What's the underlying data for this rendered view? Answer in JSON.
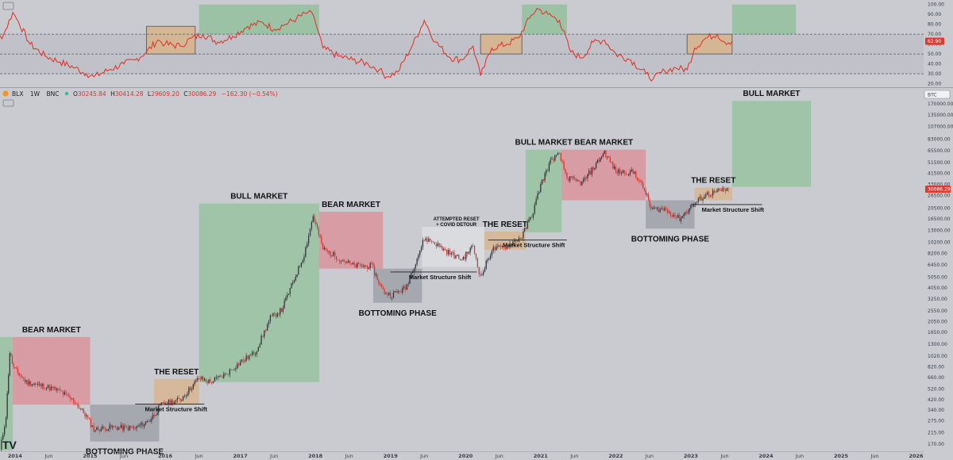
{
  "legend": {
    "symbol": "BLX",
    "interval": "1W",
    "exchange": "BNC",
    "open_label": "O",
    "open": "30245.84",
    "high_label": "H",
    "high": "30414.28",
    "low_label": "L",
    "low": "29609.20",
    "close_label": "C",
    "close": "30086.29",
    "change": "−162.30 (−0.54%)"
  },
  "currency_badge": "BTC",
  "watermark": "TV",
  "colors": {
    "background": "#c9cbd1",
    "bull_zone": "#93c19c",
    "bear_zone": "#dc8e98",
    "bottom_zone": "#9c9ea5",
    "reset_zone": "#d8b48b",
    "attempt_zone": "#dfe1e6",
    "rsi_line": "#e3372e",
    "candle_up": "#2f3036",
    "candle_down": "#d8342f",
    "price_badge": "#e3372e",
    "grid_dashed": "#555a66"
  },
  "chart_data": [
    {
      "type": "line",
      "panel": "rsi",
      "y_ticks": [
        100,
        90,
        80,
        70,
        60,
        50,
        40,
        30,
        20
      ],
      "y_tick_labels": [
        "100.00",
        "90.00",
        "80.00",
        "70.00",
        "60.00",
        "50.00",
        "40.00",
        "30.00",
        "20.00"
      ],
      "ylim": [
        18,
        103
      ],
      "current_value": 62.9,
      "current_label": "62.90",
      "reference_lines": [
        70,
        50,
        30
      ],
      "zones": [
        {
          "kind": "reset",
          "x0": 2015.75,
          "x1": 2016.4,
          "y0": 50,
          "y1": 78
        },
        {
          "kind": "bull",
          "x0": 2016.45,
          "x1": 2018.05,
          "y0": 70,
          "y1": 100
        },
        {
          "kind": "reset",
          "x0": 2020.2,
          "x1": 2020.75,
          "y0": 50,
          "y1": 70
        },
        {
          "kind": "bull",
          "x0": 2020.75,
          "x1": 2021.35,
          "y0": 70,
          "y1": 100
        },
        {
          "kind": "reset",
          "x0": 2022.95,
          "x1": 2023.55,
          "y0": 50,
          "y1": 70
        },
        {
          "kind": "bull",
          "x0": 2023.55,
          "x1": 2024.4,
          "y0": 70,
          "y1": 100
        }
      ],
      "points": [
        [
          2013.5,
          48
        ],
        [
          2013.85,
          70
        ],
        [
          2013.97,
          92
        ],
        [
          2014.05,
          82
        ],
        [
          2014.2,
          60
        ],
        [
          2014.4,
          48
        ],
        [
          2014.6,
          42
        ],
        [
          2014.8,
          36
        ],
        [
          2014.95,
          30
        ],
        [
          2015.05,
          27
        ],
        [
          2015.25,
          34
        ],
        [
          2015.45,
          40
        ],
        [
          2015.6,
          44
        ],
        [
          2015.75,
          52
        ],
        [
          2015.9,
          64
        ],
        [
          2016.0,
          60
        ],
        [
          2016.2,
          58
        ],
        [
          2016.35,
          66
        ],
        [
          2016.5,
          70
        ],
        [
          2016.7,
          62
        ],
        [
          2016.9,
          68
        ],
        [
          2017.1,
          78
        ],
        [
          2017.3,
          82
        ],
        [
          2017.45,
          75
        ],
        [
          2017.6,
          80
        ],
        [
          2017.75,
          86
        ],
        [
          2017.9,
          92
        ],
        [
          2017.98,
          88
        ],
        [
          2018.1,
          56
        ],
        [
          2018.3,
          48
        ],
        [
          2018.5,
          44
        ],
        [
          2018.7,
          40
        ],
        [
          2018.85,
          34
        ],
        [
          2018.95,
          27
        ],
        [
          2019.1,
          32
        ],
        [
          2019.3,
          60
        ],
        [
          2019.45,
          84
        ],
        [
          2019.6,
          62
        ],
        [
          2019.8,
          46
        ],
        [
          2019.95,
          44
        ],
        [
          2020.1,
          58
        ],
        [
          2020.2,
          28
        ],
        [
          2020.35,
          56
        ],
        [
          2020.55,
          60
        ],
        [
          2020.7,
          66
        ],
        [
          2020.85,
          86
        ],
        [
          2020.95,
          96
        ],
        [
          2021.1,
          90
        ],
        [
          2021.25,
          84
        ],
        [
          2021.4,
          52
        ],
        [
          2021.55,
          46
        ],
        [
          2021.7,
          62
        ],
        [
          2021.85,
          64
        ],
        [
          2022.0,
          50
        ],
        [
          2022.2,
          44
        ],
        [
          2022.4,
          30
        ],
        [
          2022.5,
          25
        ],
        [
          2022.65,
          33
        ],
        [
          2022.8,
          36
        ],
        [
          2022.95,
          34
        ],
        [
          2023.05,
          56
        ],
        [
          2023.2,
          66
        ],
        [
          2023.35,
          70
        ],
        [
          2023.45,
          62
        ],
        [
          2023.55,
          62.9
        ]
      ]
    },
    {
      "type": "candlestick",
      "panel": "price",
      "scale": "log",
      "y_ticks": [
        170000,
        135000,
        107000,
        83000,
        65500,
        51500,
        41500,
        33000,
        26500,
        20500,
        16500,
        13000,
        10200,
        8200,
        6450,
        5050,
        4050,
        3250,
        2550,
        2050,
        1650,
        1300,
        1020,
        820,
        660,
        520,
        420,
        340,
        275,
        215,
        170
      ],
      "y_tick_labels": [
        "170000.00",
        "135000.00",
        "107000.00",
        "83000.00",
        "65500.00",
        "51500.00",
        "41500.00",
        "33000.00",
        "26500.00",
        "20500.00",
        "16500.00",
        "13000.00",
        "10200.00",
        "8200.00",
        "6450.00",
        "5050.00",
        "4050.00",
        "3250.00",
        "2550.00",
        "2050.00",
        "1650.00",
        "1300.00",
        "1020.00",
        "820.00",
        "660.00",
        "520.00",
        "420.00",
        "340.00",
        "275.00",
        "215.00",
        "170.00"
      ],
      "ylim": [
        150,
        230000
      ],
      "x_range": [
        2013.8,
        2026.1
      ],
      "x_ticks": [
        2014,
        2014.45,
        2015,
        2015.45,
        2016,
        2016.45,
        2017,
        2017.45,
        2018,
        2018.45,
        2019,
        2019.45,
        2020,
        2020.45,
        2021,
        2021.45,
        2022,
        2022.45,
        2023,
        2023.45,
        2024,
        2024.45,
        2025,
        2025.45,
        2026
      ],
      "x_tick_labels": [
        "2014",
        "Jun",
        "2015",
        "Jun",
        "2016",
        "Jun",
        "2017",
        "Jun",
        "2018",
        "Jun",
        "2019",
        "Jun",
        "2020",
        "Jun",
        "2021",
        "Jun",
        "2022",
        "Jun",
        "2023",
        "Jun",
        "2024",
        "Jun",
        "2025",
        "Jun",
        "2026"
      ],
      "current_value": 30086.29,
      "current_label": "30086.29",
      "key_points": [
        [
          2013.8,
          150
        ],
        [
          2013.88,
          300
        ],
        [
          2013.93,
          1100
        ],
        [
          2013.98,
          800
        ],
        [
          2014.15,
          600
        ],
        [
          2014.4,
          550
        ],
        [
          2014.6,
          500
        ],
        [
          2014.8,
          400
        ],
        [
          2014.95,
          300
        ],
        [
          2015.05,
          230
        ],
        [
          2015.3,
          240
        ],
        [
          2015.6,
          235
        ],
        [
          2015.8,
          280
        ],
        [
          2015.95,
          380
        ],
        [
          2016.2,
          420
        ],
        [
          2016.45,
          650
        ],
        [
          2016.6,
          600
        ],
        [
          2016.8,
          700
        ],
        [
          2017.0,
          900
        ],
        [
          2017.2,
          1100
        ],
        [
          2017.4,
          2200
        ],
        [
          2017.55,
          2600
        ],
        [
          2017.7,
          4500
        ],
        [
          2017.85,
          8000
        ],
        [
          2017.97,
          17500
        ],
        [
          2018.1,
          9000
        ],
        [
          2018.3,
          7500
        ],
        [
          2018.5,
          6400
        ],
        [
          2018.75,
          6300
        ],
        [
          2018.9,
          3800
        ],
        [
          2019.0,
          3500
        ],
        [
          2019.2,
          4000
        ],
        [
          2019.45,
          11000
        ],
        [
          2019.55,
          10500
        ],
        [
          2019.75,
          8500
        ],
        [
          2019.95,
          7200
        ],
        [
          2020.1,
          9500
        ],
        [
          2020.2,
          5000
        ],
        [
          2020.35,
          8800
        ],
        [
          2020.55,
          9500
        ],
        [
          2020.75,
          11500
        ],
        [
          2020.9,
          19000
        ],
        [
          2021.0,
          33000
        ],
        [
          2021.15,
          56000
        ],
        [
          2021.25,
          60000
        ],
        [
          2021.35,
          38000
        ],
        [
          2021.55,
          34000
        ],
        [
          2021.72,
          48000
        ],
        [
          2021.85,
          64000
        ],
        [
          2022.0,
          43000
        ],
        [
          2022.25,
          42000
        ],
        [
          2022.4,
          28000
        ],
        [
          2022.47,
          20000
        ],
        [
          2022.65,
          20000
        ],
        [
          2022.85,
          16500
        ],
        [
          2023.0,
          21000
        ],
        [
          2023.2,
          27000
        ],
        [
          2023.35,
          28500
        ],
        [
          2023.5,
          30086.29
        ]
      ],
      "zones": [
        {
          "kind": "bull",
          "x0": 2013.8,
          "x1": 2013.97,
          "y0": 150,
          "y1": 1500,
          "label": ""
        },
        {
          "kind": "bear",
          "x0": 2013.97,
          "x1": 2015.0,
          "y0": 380,
          "y1": 1500,
          "label": "BEAR MARKET"
        },
        {
          "kind": "bottom",
          "x0": 2015.0,
          "x1": 2015.92,
          "y0": 180,
          "y1": 380,
          "label": "BOTTOMING PHASE"
        },
        {
          "kind": "reset",
          "x0": 2015.85,
          "x1": 2016.45,
          "y0": 380,
          "y1": 640,
          "label": "THE RESET"
        },
        {
          "kind": "bull",
          "x0": 2016.45,
          "x1": 2018.05,
          "y0": 600,
          "y1": 22500,
          "label": "BULL MARKET"
        },
        {
          "kind": "bear",
          "x0": 2018.05,
          "x1": 2018.9,
          "y0": 6000,
          "y1": 19000,
          "label": "BEAR MARKET"
        },
        {
          "kind": "bottom",
          "x0": 2018.77,
          "x1": 2019.42,
          "y0": 3000,
          "y1": 6000,
          "label": "BOTTOMING PHASE"
        },
        {
          "kind": "attempt",
          "x0": 2019.42,
          "x1": 2020.25,
          "y0": 6200,
          "y1": 14000,
          "label": "ATTEMPTED RESET"
        },
        {
          "kind": "reset",
          "x0": 2020.25,
          "x1": 2020.8,
          "y0": 8800,
          "y1": 12700,
          "label": "THE RESET"
        },
        {
          "kind": "bull",
          "x0": 2020.8,
          "x1": 2021.28,
          "y0": 12500,
          "y1": 67000,
          "label": "BULL MARKET"
        },
        {
          "kind": "bear",
          "x0": 2021.28,
          "x1": 2022.4,
          "y0": 24000,
          "y1": 67000,
          "label": "BEAR MARKET"
        },
        {
          "kind": "bottom",
          "x0": 2022.4,
          "x1": 2023.05,
          "y0": 13500,
          "y1": 24000,
          "label": "BOTTOMING PHASE"
        },
        {
          "kind": "reset",
          "x0": 2023.05,
          "x1": 2023.55,
          "y0": 24000,
          "y1": 31000,
          "label": "THE RESET"
        },
        {
          "kind": "bull",
          "x0": 2023.55,
          "x1": 2024.6,
          "y0": 31500,
          "y1": 180000,
          "label": "BULL MARKET"
        }
      ],
      "structure_lines": [
        {
          "x0": 2015.6,
          "x1": 2016.52,
          "y": 385,
          "label": "Market Structure Shift"
        },
        {
          "x0": 2019.0,
          "x1": 2020.15,
          "y": 5600,
          "label": "Market Structure Shift"
        },
        {
          "x0": 2020.3,
          "x1": 2021.35,
          "y": 10700,
          "label": "Market Structure Shift"
        },
        {
          "x0": 2023.0,
          "x1": 2023.95,
          "y": 22000,
          "label": "Market Structure Shift"
        }
      ]
    }
  ],
  "labels": {
    "bear_market": "BEAR MARKET",
    "bull_market": "BULL MARKET",
    "bottoming_phase": "BOTTOMING PHASE",
    "the_reset": "THE RESET",
    "attempted_reset_line1": "ATTEMPTED RESET",
    "attempted_reset_line2": "+ COVID DETOUR",
    "market_structure_shift": "Market Structure Shift"
  }
}
